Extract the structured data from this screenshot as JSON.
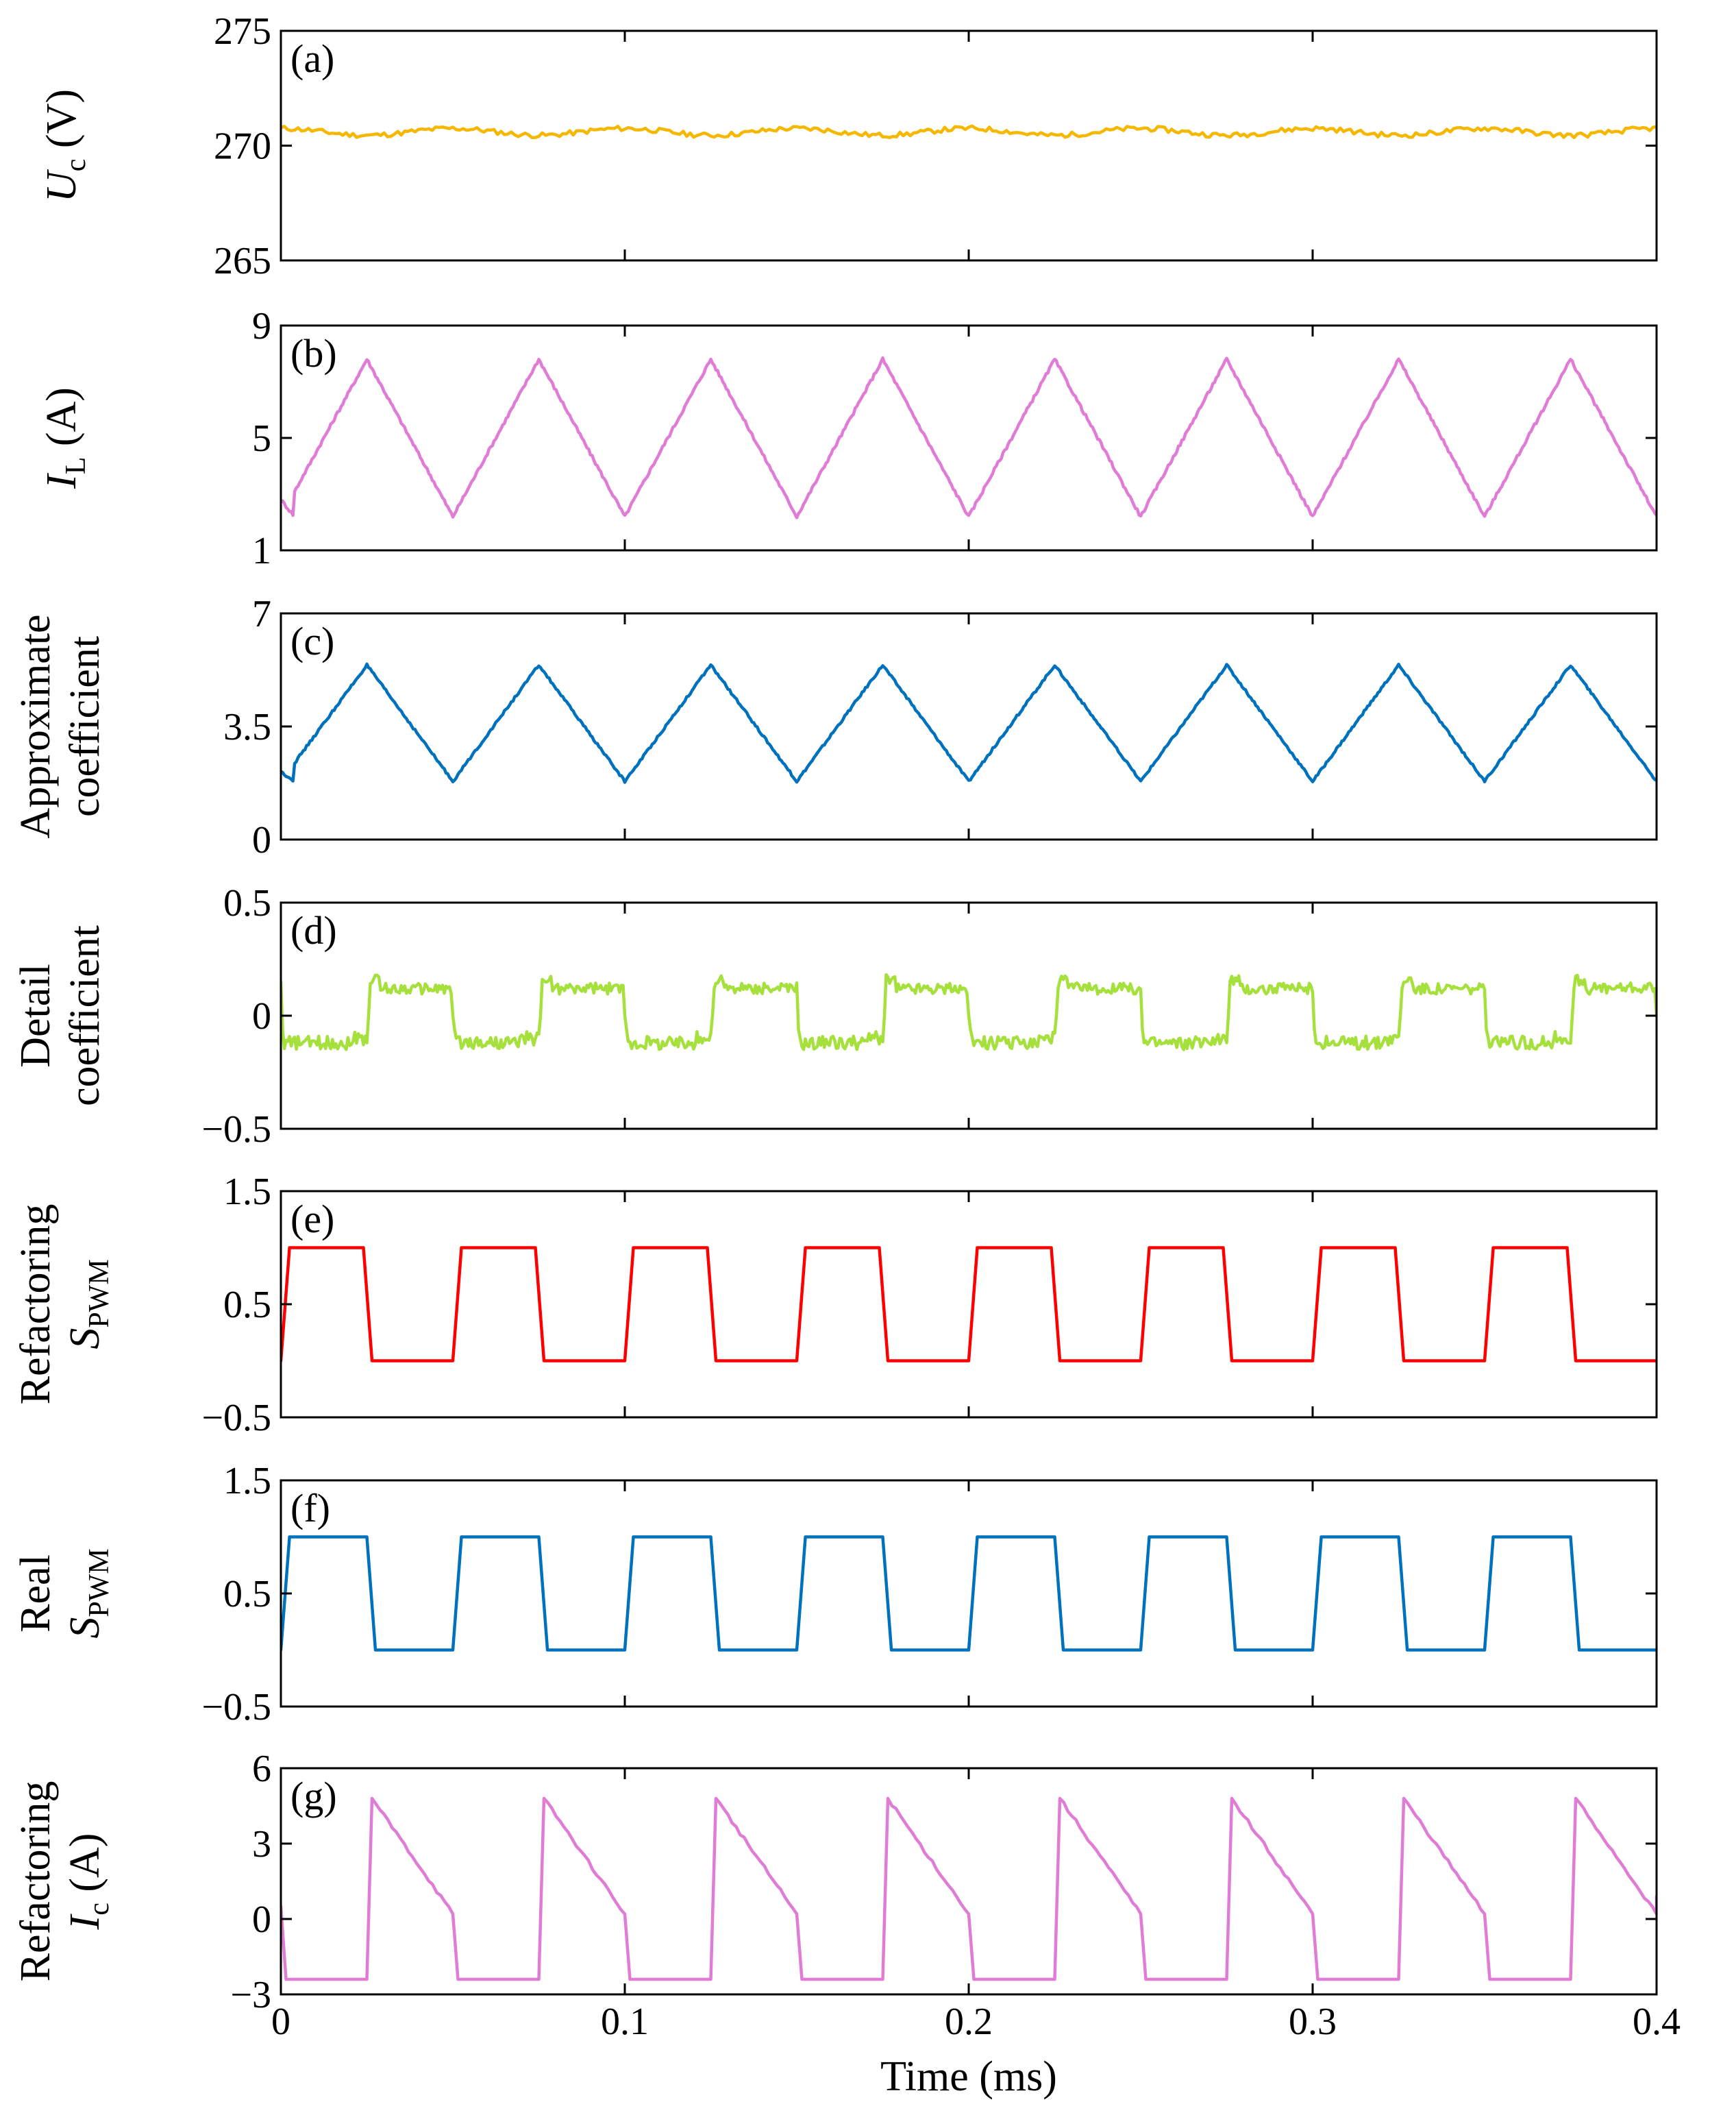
{
  "chart_data": {
    "type": "line",
    "x_range": [
      0,
      0.4
    ],
    "x_ticks": [
      0,
      0.1,
      0.2,
      0.3,
      0.4
    ],
    "x_tick_labels": [
      "0",
      "0.1",
      "0.2",
      "0.3",
      "0.4"
    ],
    "xlabel": "Time (ms)",
    "panels": [
      {
        "id": "a",
        "label": "(a)",
        "color": "#F5B700",
        "ylabel": [
          [
            {
              "t": "U",
              "it": true
            },
            {
              "t": "c",
              "sub": true
            },
            {
              "t": " (V)"
            }
          ]
        ],
        "ylim": [
          265,
          275
        ],
        "yticks": [
          265,
          270,
          275
        ],
        "ytick_labels": [
          "265",
          "270",
          "275"
        ],
        "series": {
          "name": "U_c",
          "kind": "ripple",
          "mean": 270.6,
          "amplitude": 0.25,
          "period": 0.05
        }
      },
      {
        "id": "b",
        "label": "(b)",
        "color": "#E07CD6",
        "ylabel": [
          [
            {
              "t": "I",
              "it": true
            },
            {
              "t": "L",
              "sub": true
            },
            {
              "t": " (A)"
            }
          ]
        ],
        "ylim": [
          1,
          9
        ],
        "yticks": [
          1,
          5,
          9
        ],
        "ytick_labels": [
          "1",
          "5",
          "9"
        ],
        "series": {
          "name": "I_L",
          "kind": "triangle",
          "start": 2.8,
          "min": 2.2,
          "max": 7.8,
          "period": 0.05,
          "rise_fraction": 0.5
        }
      },
      {
        "id": "c",
        "label": "(c)",
        "color": "#0072BD",
        "ylabel": [
          [
            {
              "t": "Approximate"
            }
          ],
          [
            {
              "t": "coefficient"
            }
          ]
        ],
        "ylim": [
          0,
          7
        ],
        "yticks": [
          0,
          3.5,
          7
        ],
        "ytick_labels": [
          "0",
          "3.5",
          "7"
        ],
        "series": {
          "name": "Approximate coefficient",
          "kind": "triangle",
          "start": 2.1,
          "min": 1.8,
          "max": 5.4,
          "period": 0.05,
          "rise_fraction": 0.5
        }
      },
      {
        "id": "d",
        "label": "(d)",
        "color": "#A6E03C",
        "ylabel": [
          [
            {
              "t": "Detail"
            }
          ],
          [
            {
              "t": "coefficient"
            }
          ]
        ],
        "ylim": [
          -0.5,
          0.5
        ],
        "yticks": [
          -0.5,
          0,
          0.5
        ],
        "ytick_labels": [
          "−0.5",
          "0",
          "0.5"
        ],
        "series": {
          "name": "Detail coefficient",
          "kind": "detail",
          "high": 0.12,
          "low": -0.12,
          "period": 0.05,
          "duty": 0.5
        }
      },
      {
        "id": "e",
        "label": "(e)",
        "color": "#FF0000",
        "ylabel": [
          [
            {
              "t": "Refactoring"
            }
          ],
          [
            {
              "t": "S",
              "it": true
            },
            {
              "t": "PWM",
              "sub": true
            }
          ]
        ],
        "ylim": [
          -0.5,
          1.5
        ],
        "yticks": [
          -0.5,
          0.5,
          1.5
        ],
        "ytick_labels": [
          "−0.5",
          "0.5",
          "1.5"
        ],
        "series": {
          "name": "Refactoring S_PWM",
          "kind": "square",
          "high": 1,
          "low": 0,
          "period": 0.05,
          "duty": 0.48,
          "phase": 0.0
        }
      },
      {
        "id": "f",
        "label": "(f)",
        "color": "#0072BD",
        "ylabel": [
          [
            {
              "t": "Real"
            }
          ],
          [
            {
              "t": "S",
              "it": true
            },
            {
              "t": "PWM",
              "sub": true
            }
          ]
        ],
        "ylim": [
          -0.5,
          1.5
        ],
        "yticks": [
          -0.5,
          0.5,
          1.5
        ],
        "ytick_labels": [
          "−0.5",
          "0.5",
          "1.5"
        ],
        "series": {
          "name": "Real S_PWM",
          "kind": "square",
          "high": 1,
          "low": 0,
          "period": 0.05,
          "duty": 0.5,
          "phase": 0.0
        }
      },
      {
        "id": "g",
        "label": "(g)",
        "color": "#E07CD6",
        "ylabel": [
          [
            {
              "t": "Refactoring"
            }
          ],
          [
            {
              "t": "I",
              "it": true
            },
            {
              "t": "c",
              "sub": true
            },
            {
              "t": " (A)"
            }
          ]
        ],
        "ylim": [
          -3,
          6
        ],
        "yticks": [
          -3,
          0,
          3,
          6
        ],
        "ytick_labels": [
          "−3",
          "0",
          "3",
          "6"
        ],
        "series": {
          "name": "Refactoring I_c",
          "kind": "sawtooth",
          "start": 0.5,
          "low": -2.4,
          "peak": 4.8,
          "end": 0.2,
          "period": 0.05,
          "duty": 0.5
        }
      }
    ]
  }
}
